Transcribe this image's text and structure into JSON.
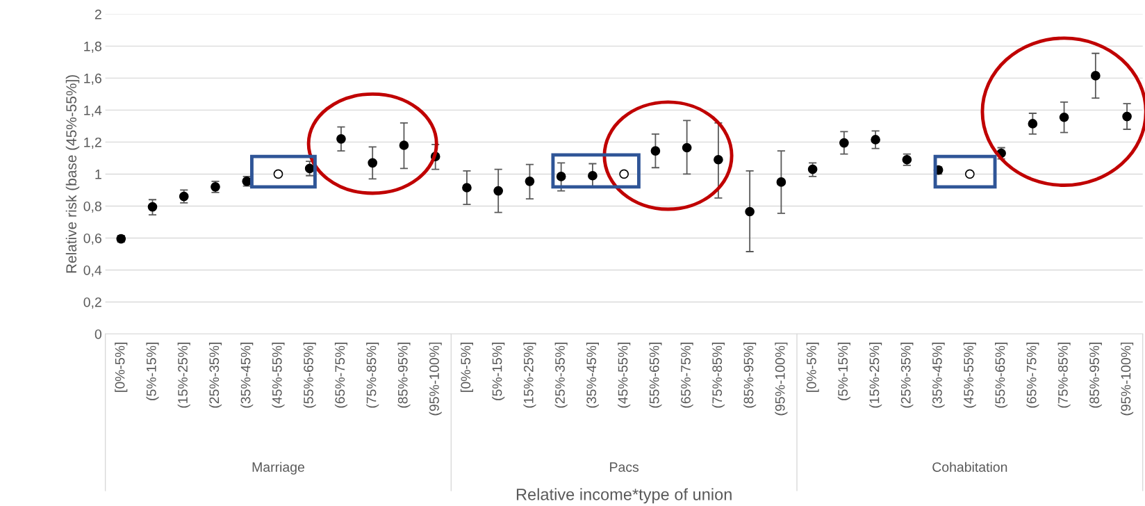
{
  "chart_data": {
    "type": "scatter",
    "categories": [
      "[0%-5%]",
      "(5%-15%]",
      "(15%-25%]",
      "(25%-35%]",
      "(35%-45%]",
      "(45%-55%]",
      "(55%-65%]",
      "(65%-75%]",
      "(75%-85%]",
      "(85%-95%]",
      "(95%-100%]",
      "[0%-5%]",
      "(5%-15%]",
      "(15%-25%]",
      "(25%-35%]",
      "(35%-45%]",
      "(45%-55%]",
      "(55%-65%]",
      "(65%-75%]",
      "(75%-85%]",
      "(85%-95%]",
      "(95%-100%]",
      "[0%-5%]",
      "(5%-15%]",
      "(15%-25%]",
      "(25%-35%]",
      "(35%-45%]",
      "(45%-55%]",
      "(55%-65%]",
      "(65%-75%]",
      "(75%-85%]",
      "(85%-95%]",
      "(95%-100%]"
    ],
    "series": [
      {
        "color": "#000000",
        "marker": "circle",
        "values": [
          0.595,
          0.795,
          0.86,
          0.92,
          0.955,
          null,
          1.035,
          1.22,
          1.07,
          1.18,
          1.11,
          0.915,
          0.895,
          0.955,
          0.985,
          0.99,
          null,
          1.145,
          1.165,
          1.09,
          0.765,
          0.95,
          1.03,
          1.195,
          1.215,
          1.09,
          1.025,
          null,
          1.13,
          1.315,
          1.355,
          1.615,
          1.36
        ],
        "errors": [
          [
            0.575,
            0.615
          ],
          [
            0.745,
            0.84
          ],
          [
            0.82,
            0.9
          ],
          [
            0.885,
            0.955
          ],
          [
            0.925,
            0.985
          ],
          null,
          [
            0.99,
            1.08
          ],
          [
            1.145,
            1.295
          ],
          [
            0.97,
            1.17
          ],
          [
            1.035,
            1.32
          ],
          [
            1.03,
            1.185
          ],
          [
            0.81,
            1.02
          ],
          [
            0.76,
            1.03
          ],
          [
            0.845,
            1.06
          ],
          [
            0.895,
            1.07
          ],
          [
            0.915,
            1.065
          ],
          null,
          [
            1.04,
            1.25
          ],
          [
            1.0,
            1.335
          ],
          [
            0.85,
            1.32
          ],
          [
            0.515,
            1.02
          ],
          [
            0.755,
            1.145
          ],
          [
            0.985,
            1.07
          ],
          [
            1.125,
            1.265
          ],
          [
            1.16,
            1.27
          ],
          [
            1.055,
            1.125
          ],
          [
            1.0,
            1.045
          ],
          null,
          [
            1.095,
            1.165
          ],
          [
            1.25,
            1.38
          ],
          [
            1.26,
            1.45
          ],
          [
            1.475,
            1.755
          ],
          [
            1.28,
            1.44
          ]
        ]
      },
      {
        "color": "#ffffff",
        "marker": "circle",
        "values": [
          null,
          null,
          null,
          null,
          null,
          1.0,
          null,
          null,
          null,
          null,
          null,
          null,
          null,
          null,
          null,
          null,
          1.0,
          null,
          null,
          null,
          null,
          null,
          null,
          null,
          null,
          null,
          null,
          1.0,
          null,
          null,
          null,
          null,
          null
        ]
      }
    ],
    "ylabel": "Relative risk (base (45%-55%])",
    "xlabel": "Relative income*type of union",
    "annotations": [
      "Marriage",
      "Pacs",
      "Cohabitation"
    ],
    "ylim": [
      0,
      2
    ],
    "yticks": [
      0,
      {
        "value": 0.2,
        "label": "0,2"
      },
      {
        "value": 0.4,
        "label": "0,4"
      },
      {
        "value": 0.6,
        "label": "0,6"
      },
      {
        "value": 0.8,
        "label": "0,8"
      },
      1,
      {
        "value": 1.2,
        "label": "1,2"
      },
      {
        "value": 1.4,
        "label": "1,4"
      },
      {
        "value": 1.6,
        "label": "1,6"
      },
      {
        "value": 1.8,
        "label": "1,8"
      },
      2
    ],
    "grid": "y"
  }
}
